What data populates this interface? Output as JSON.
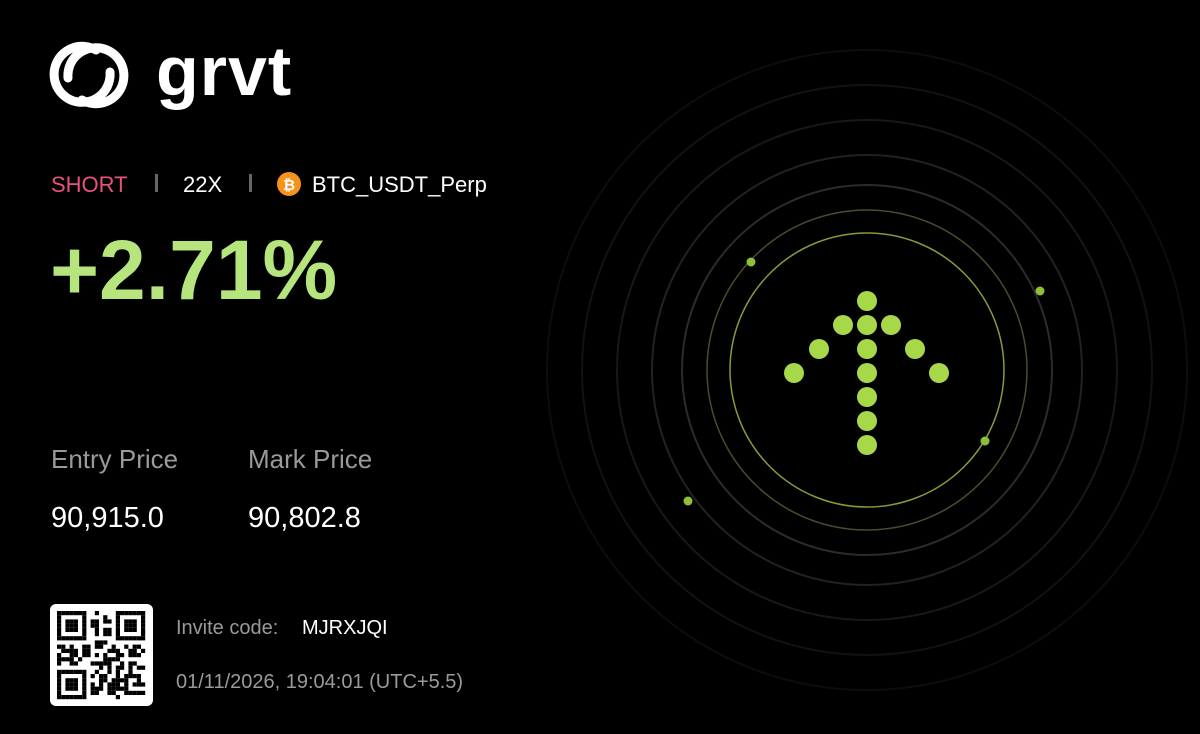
{
  "brand": {
    "name": "grvt"
  },
  "position": {
    "side": "SHORT",
    "leverage": "22X",
    "symbol": "BTC_USDT_Perp",
    "pnl_percent": "+2.71%"
  },
  "prices": {
    "entry_label": "Entry Price",
    "entry_value": "90,915.0",
    "mark_label": "Mark Price",
    "mark_value": "90,802.8"
  },
  "invite": {
    "label": "Invite code:",
    "code": "MJRXJQI"
  },
  "timestamp": "01/11/2026, 19:04:01 (UTC+5.5)"
}
